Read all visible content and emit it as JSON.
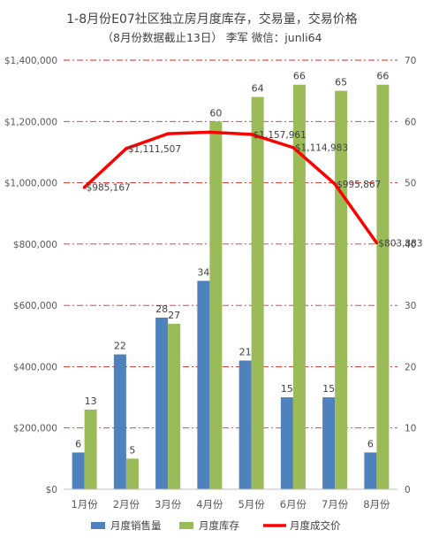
{
  "chart_data": {
    "type": "bar",
    "title": "1-8月份E07社区独立房月度库存，交易量，交易价格",
    "subtitle": "（8月份数据截止13日） 李军 微信：junli64",
    "categories": [
      "1月份",
      "2月份",
      "3月份",
      "4月份",
      "5月份",
      "6月份",
      "7月份",
      "8月份"
    ],
    "y_left": {
      "ylim": [
        0,
        1400000
      ],
      "ticks": [
        "$0",
        "$200,000",
        "$400,000",
        "$600,000",
        "$800,000",
        "$1,000,000",
        "$1,200,000",
        "$1,400,000"
      ]
    },
    "y_right": {
      "ylim": [
        0,
        70
      ],
      "ticks": [
        "0",
        "10",
        "20",
        "30",
        "40",
        "50",
        "60",
        "70"
      ]
    },
    "series": [
      {
        "name": "月度销售量",
        "type": "bar",
        "axis": "right",
        "color": "#4f81bd",
        "values": [
          6,
          22,
          28,
          34,
          21,
          15,
          15,
          6
        ],
        "labels": [
          "6",
          "22",
          "28",
          "34",
          "21",
          "15",
          "15",
          "6"
        ]
      },
      {
        "name": "月度库存",
        "type": "bar",
        "axis": "right",
        "color": "#9bbb59",
        "values": [
          13,
          5,
          27,
          60,
          64,
          66,
          65,
          66
        ],
        "labels": [
          "13",
          "5",
          "27",
          "60",
          "64",
          "66",
          "65",
          "66"
        ]
      },
      {
        "name": "月度成交价",
        "type": "line",
        "axis": "left",
        "color": "#ff0000",
        "values": [
          985167,
          1111507,
          1160000,
          1165000,
          1157961,
          1114983,
          995867,
          803883
        ],
        "labels": [
          "$985,167",
          "$1,111,507",
          "",
          "",
          "$1,157,961",
          "$1,114,983",
          "$995,867",
          "$803,883"
        ]
      }
    ],
    "grid": true,
    "legend": "bottom"
  }
}
